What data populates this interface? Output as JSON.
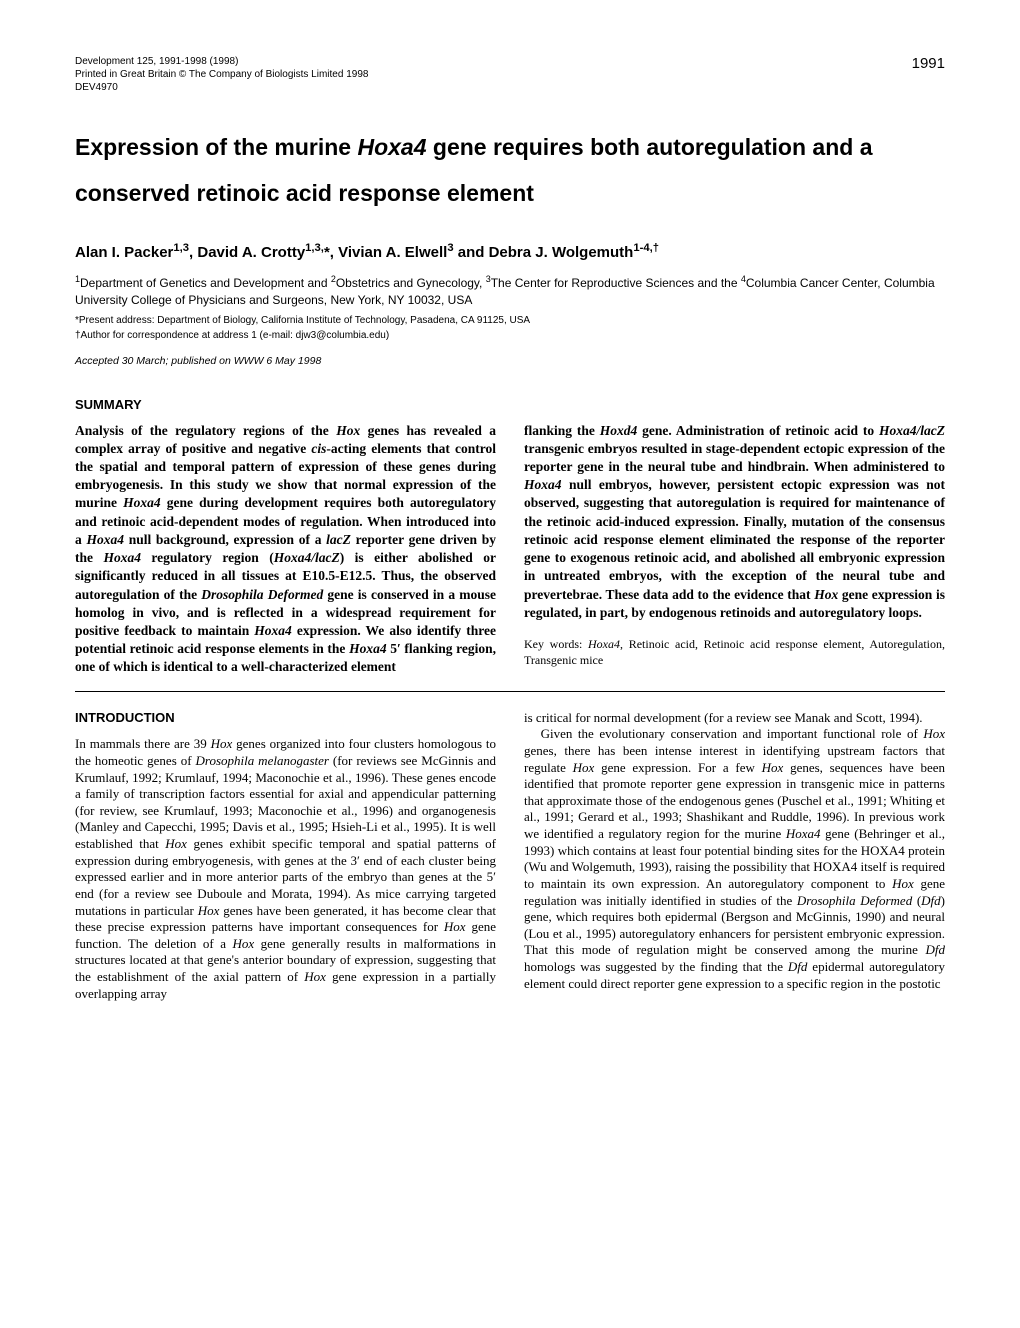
{
  "page_number": "1991",
  "meta": {
    "line1": "Development 125, 1991-1998 (1998)",
    "line2": "Printed in Great Britain © The Company of Biologists Limited 1998",
    "line3": "DEV4970"
  },
  "title": {
    "pre": "Expression of the murine ",
    "gene": "Hoxa4",
    "post": " gene requires both autoregulation and a conserved retinoic acid response element"
  },
  "authors": "Alan I. Packer1,3, David A. Crotty1,3,*, Vivian A. Elwell3 and Debra J. Wolgemuth1-4,†",
  "affiliations": {
    "line1": "1Department of Genetics and Development and 2Obstetrics and Gynecology, 3The Center for Reproductive Sciences and the 4Columbia Cancer Center, Columbia University College of Physicians and Surgeons, New York, NY 10032, USA"
  },
  "notes": {
    "present": "*Present address: Department of Biology, California Institute of Technology, Pasadena, CA 91125, USA",
    "correspondence": "†Author for correspondence at address 1 (e-mail: djw3@columbia.edu)"
  },
  "accepted": "Accepted 30 March; published on WWW 6 May 1998",
  "headings": {
    "summary": "SUMMARY",
    "introduction": "INTRODUCTION"
  },
  "summary": {
    "left": "Analysis of the regulatory regions of the Hox genes has revealed a complex array of positive and negative cis-acting elements that control the spatial and temporal pattern of expression of these genes during embryogenesis. In this study we show that normal expression of the murine Hoxa4 gene during development requires both autoregulatory and retinoic acid-dependent modes of regulation. When introduced into a Hoxa4 null background, expression of a lacZ reporter gene driven by the Hoxa4 regulatory region (Hoxa4/lacZ) is either abolished or significantly reduced in all tissues at E10.5-E12.5. Thus, the observed autoregulation of the Drosophila Deformed gene is conserved in a mouse homolog in vivo, and is reflected in a widespread requirement for positive feedback to maintain Hoxa4 expression. We also identify three potential retinoic acid response elements in the Hoxa4 5′ flanking region, one of which is identical to a well-characterized element",
    "right": "flanking the Hoxd4 gene. Administration of retinoic acid to Hoxa4/lacZ transgenic embryos resulted in stage-dependent ectopic expression of the reporter gene in the neural tube and hindbrain. When administered to Hoxa4 null embryos, however, persistent ectopic expression was not observed, suggesting that autoregulation is required for maintenance of the retinoic acid-induced expression. Finally, mutation of the consensus retinoic acid response element eliminated the response of the reporter gene to exogenous retinoic acid, and abolished all embryonic expression in untreated embryos, with the exception of the neural tube and prevertebrae. These data add to the evidence that Hox gene expression is regulated, in part, by endogenous retinoids and autoregulatory loops.",
    "keywords_label": "Key words: ",
    "keywords_list": "Hoxa4, Retinoic acid, Retinoic acid response element, Autoregulation, Transgenic mice"
  },
  "introduction": {
    "left": "In mammals there are 39 Hox genes organized into four clusters homologous to the homeotic genes of Drosophila melanogaster (for reviews see McGinnis and Krumlauf, 1992; Krumlauf, 1994; Maconochie et al., 1996). These genes encode a family of transcription factors essential for axial and appendicular patterning (for review, see Krumlauf, 1993; Maconochie et al., 1996) and organogenesis (Manley and Capecchi, 1995; Davis et al., 1995; Hsieh-Li et al., 1995). It is well established that Hox genes exhibit specific temporal and spatial patterns of expression during embryogenesis, with genes at the 3′ end of each cluster being expressed earlier and in more anterior parts of the embryo than genes at the 5′ end (for a review see Duboule and Morata, 1994). As mice carrying targeted mutations in particular Hox genes have been generated, it has become clear that these precise expression patterns have important consequences for Hox gene function. The deletion of a Hox gene generally results in malformations in structures located at that gene's anterior boundary of expression, suggesting that the establishment of the axial pattern of Hox gene expression in a partially overlapping array",
    "right_top": "is critical for normal development (for a review see Manak and Scott, 1994).",
    "right_para2": "Given the evolutionary conservation and important functional role of Hox genes, there has been intense interest in identifying upstream factors that regulate Hox gene expression. For a few Hox genes, sequences have been identified that promote reporter gene expression in transgenic mice in patterns that approximate those of the endogenous genes (Puschel et al., 1991; Whiting et al., 1991; Gerard et al., 1993; Shashikant and Ruddle, 1996). In previous work we identified a regulatory region for the murine Hoxa4 gene (Behringer et al., 1993) which contains at least four potential binding sites for the HOXA4 protein (Wu and Wolgemuth, 1993), raising the possibility that HOXA4 itself is required to maintain its own expression. An autoregulatory component to Hox gene regulation was initially identified in studies of the Drosophila Deformed (Dfd) gene, which requires both epidermal (Bergson and McGinnis, 1990) and neural (Lou et al., 1995) autoregulatory enhancers for persistent embryonic expression. That this mode of regulation might be conserved among the murine Dfd homologs was suggested by the finding that the Dfd epidermal autoregulatory element could direct reporter gene expression to a specific region in the postotic"
  }
}
